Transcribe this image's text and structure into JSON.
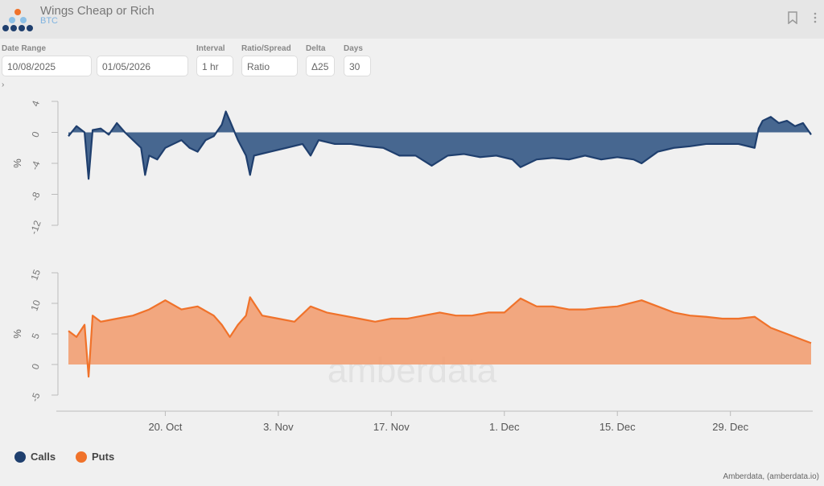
{
  "header": {
    "title": "Wings Cheap or Rich",
    "subtitle": "BTC",
    "bookmark_icon": "bookmark-icon",
    "menu_icon": "more-vertical-icon"
  },
  "controls": {
    "date_range_label": "Date Range",
    "start_date": "10/08/2025",
    "end_date": "01/05/2026",
    "interval_label": "Interval",
    "interval": "1 hr",
    "ratio_label": "Ratio/Spread",
    "ratio": "Ratio",
    "delta_label": "Delta",
    "delta": "Δ25",
    "days_label": "Days",
    "days": "30",
    "expander": "›"
  },
  "legend": [
    {
      "label": "Calls",
      "color": "#1f3f6e"
    },
    {
      "label": "Puts",
      "color": "#f0722a"
    }
  ],
  "credit": "Amberdata, (amberdata.io)",
  "watermark": "amberdata",
  "chart_data": [
    {
      "type": "area",
      "ylabel": "%",
      "ylim": [
        -12,
        4
      ],
      "yticks": [
        4,
        0,
        -4,
        -8,
        -12
      ],
      "color": "#1f3f6e",
      "fill": "#3d5f8a",
      "xlim": [
        "2025-10-07T12:00",
        "2026-01-08T00:00"
      ],
      "xticks": [
        {
          "date": "2025-10-20",
          "label": "20. Oct"
        },
        {
          "date": "2025-11-03",
          "label": "3. Nov"
        },
        {
          "date": "2025-11-17",
          "label": "17. Nov"
        },
        {
          "date": "2025-12-01",
          "label": "1. Dec"
        },
        {
          "date": "2025-12-15",
          "label": "15. Dec"
        },
        {
          "date": "2025-12-29",
          "label": "29. Dec"
        }
      ],
      "series": [
        {
          "name": "Calls",
          "points": [
            [
              "2025-10-08",
              -0.5
            ],
            [
              "2025-10-09",
              0.8
            ],
            [
              "2025-10-10",
              0
            ],
            [
              "2025-10-10T12:00",
              -6
            ],
            [
              "2025-10-11",
              0.3
            ],
            [
              "2025-10-12",
              0.5
            ],
            [
              "2025-10-13",
              -0.3
            ],
            [
              "2025-10-14",
              1.2
            ],
            [
              "2025-10-15",
              0
            ],
            [
              "2025-10-16",
              -1
            ],
            [
              "2025-10-17",
              -2
            ],
            [
              "2025-10-17T12:00",
              -5.5
            ],
            [
              "2025-10-18",
              -3
            ],
            [
              "2025-10-19",
              -3.5
            ],
            [
              "2025-10-20",
              -2
            ],
            [
              "2025-10-21",
              -1.5
            ],
            [
              "2025-10-22",
              -1
            ],
            [
              "2025-10-23",
              -2
            ],
            [
              "2025-10-24",
              -2.5
            ],
            [
              "2025-10-25",
              -1
            ],
            [
              "2025-10-26",
              -0.5
            ],
            [
              "2025-10-27",
              1
            ],
            [
              "2025-10-27T12:00",
              2.7
            ],
            [
              "2025-10-28",
              1.5
            ],
            [
              "2025-10-29",
              -1
            ],
            [
              "2025-10-30",
              -3
            ],
            [
              "2025-10-30T12:00",
              -5.5
            ],
            [
              "2025-10-31",
              -3
            ],
            [
              "2025-11-02",
              -2.5
            ],
            [
              "2025-11-04",
              -2
            ],
            [
              "2025-11-06",
              -1.5
            ],
            [
              "2025-11-07",
              -3
            ],
            [
              "2025-11-08",
              -1
            ],
            [
              "2025-11-10",
              -1.5
            ],
            [
              "2025-11-12",
              -1.5
            ],
            [
              "2025-11-14",
              -1.8
            ],
            [
              "2025-11-16",
              -2
            ],
            [
              "2025-11-18",
              -3
            ],
            [
              "2025-11-20",
              -3
            ],
            [
              "2025-11-22",
              -4.3
            ],
            [
              "2025-11-24",
              -3
            ],
            [
              "2025-11-26",
              -2.8
            ],
            [
              "2025-11-28",
              -3.2
            ],
            [
              "2025-11-30",
              -3
            ],
            [
              "2025-12-02",
              -3.5
            ],
            [
              "2025-12-03",
              -4.5
            ],
            [
              "2025-12-05",
              -3.5
            ],
            [
              "2025-12-07",
              -3.3
            ],
            [
              "2025-12-09",
              -3.5
            ],
            [
              "2025-12-11",
              -3
            ],
            [
              "2025-12-13",
              -3.5
            ],
            [
              "2025-12-15",
              -3.2
            ],
            [
              "2025-12-17",
              -3.5
            ],
            [
              "2025-12-18",
              -4
            ],
            [
              "2025-12-20",
              -2.5
            ],
            [
              "2025-12-22",
              -2
            ],
            [
              "2025-12-24",
              -1.8
            ],
            [
              "2025-12-26",
              -1.5
            ],
            [
              "2025-12-28",
              -1.5
            ],
            [
              "2025-12-30",
              -1.5
            ],
            [
              "2026-01-01",
              -2
            ],
            [
              "2026-01-01T12:00",
              0.5
            ],
            [
              "2026-01-02",
              1.5
            ],
            [
              "2026-01-03",
              2
            ],
            [
              "2026-01-04",
              1.2
            ],
            [
              "2026-01-05",
              1.5
            ],
            [
              "2026-01-06",
              0.8
            ],
            [
              "2026-01-07",
              1.2
            ],
            [
              "2026-01-08",
              -0.3
            ]
          ]
        }
      ]
    },
    {
      "type": "area",
      "ylabel": "%",
      "ylim": [
        -5,
        15
      ],
      "yticks": [
        15,
        10,
        5,
        0,
        -5
      ],
      "color": "#f0722a",
      "fill": "#f29a6b",
      "xlim": [
        "2025-10-07T12:00",
        "2026-01-08T00:00"
      ],
      "series": [
        {
          "name": "Puts",
          "points": [
            [
              "2025-10-08",
              5.5
            ],
            [
              "2025-10-09",
              4.5
            ],
            [
              "2025-10-10",
              6.5
            ],
            [
              "2025-10-10T12:00",
              -2
            ],
            [
              "2025-10-11",
              8
            ],
            [
              "2025-10-12",
              7
            ],
            [
              "2025-10-14",
              7.5
            ],
            [
              "2025-10-16",
              8
            ],
            [
              "2025-10-18",
              9
            ],
            [
              "2025-10-20",
              10.5
            ],
            [
              "2025-10-22",
              9
            ],
            [
              "2025-10-24",
              9.5
            ],
            [
              "2025-10-26",
              8
            ],
            [
              "2025-10-27",
              6.5
            ],
            [
              "2025-10-28",
              4.5
            ],
            [
              "2025-10-29",
              6.5
            ],
            [
              "2025-10-30",
              8
            ],
            [
              "2025-10-30T12:00",
              11
            ],
            [
              "2025-11-01",
              8
            ],
            [
              "2025-11-03",
              7.5
            ],
            [
              "2025-11-05",
              7
            ],
            [
              "2025-11-07",
              9.5
            ],
            [
              "2025-11-09",
              8.5
            ],
            [
              "2025-11-11",
              8
            ],
            [
              "2025-11-13",
              7.5
            ],
            [
              "2025-11-15",
              7
            ],
            [
              "2025-11-17",
              7.5
            ],
            [
              "2025-11-19",
              7.5
            ],
            [
              "2025-11-21",
              8
            ],
            [
              "2025-11-23",
              8.5
            ],
            [
              "2025-11-25",
              8
            ],
            [
              "2025-11-27",
              8
            ],
            [
              "2025-11-29",
              8.5
            ],
            [
              "2025-12-01",
              8.5
            ],
            [
              "2025-12-03",
              10.8
            ],
            [
              "2025-12-05",
              9.5
            ],
            [
              "2025-12-07",
              9.5
            ],
            [
              "2025-12-09",
              9
            ],
            [
              "2025-12-11",
              9
            ],
            [
              "2025-12-13",
              9.3
            ],
            [
              "2025-12-15",
              9.5
            ],
            [
              "2025-12-18",
              10.5
            ],
            [
              "2025-12-20",
              9.5
            ],
            [
              "2025-12-22",
              8.5
            ],
            [
              "2025-12-24",
              8
            ],
            [
              "2025-12-26",
              7.8
            ],
            [
              "2025-12-28",
              7.5
            ],
            [
              "2025-12-30",
              7.5
            ],
            [
              "2026-01-01",
              7.8
            ],
            [
              "2026-01-03",
              6
            ],
            [
              "2026-01-05",
              5
            ],
            [
              "2026-01-07",
              4
            ],
            [
              "2026-01-08",
              3.5
            ]
          ]
        }
      ]
    }
  ]
}
